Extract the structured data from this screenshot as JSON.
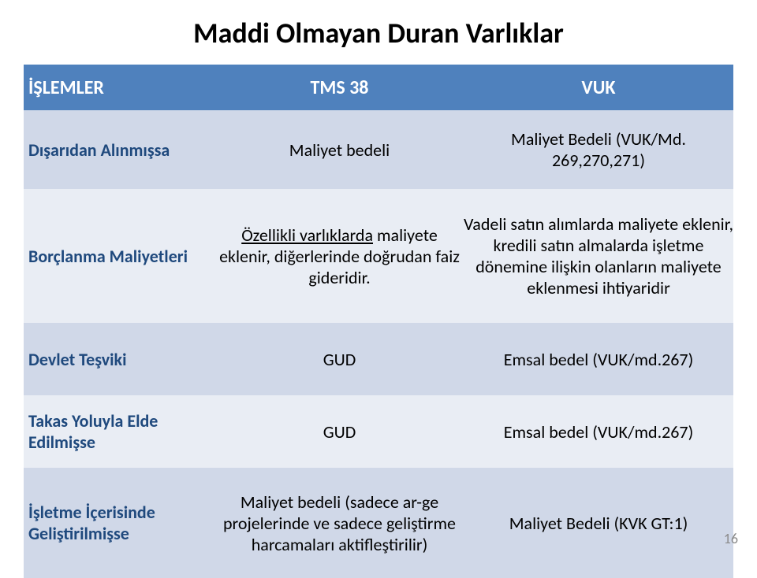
{
  "title": "Maddi Olmayan Duran Varlıklar",
  "headers": {
    "c1": "İŞLEMLER",
    "c2": "TMS 38",
    "c3": "VUK"
  },
  "rows": [
    {
      "label": "Dışarıdan Alınmışsa",
      "tms": "Maliyet bedeli",
      "vuk": "Maliyet Bedeli (VUK/Md. 269,270,271)"
    },
    {
      "label": "Borçlanma Maliyetleri",
      "tms_underlined": "Özellikli varlıklarda",
      "tms_rest": " maliyete eklenir, diğerlerinde doğrudan faiz gideridir.",
      "vuk": "Vadeli satın alımlarda maliyete eklenir, kredili satın almalarda işletme dönemine ilişkin olanların maliyete eklenmesi ihtiyaridir"
    },
    {
      "label": "Devlet Teşviki",
      "tms": "GUD",
      "vuk": "Emsal bedel (VUK/md.267)"
    },
    {
      "label": "Takas Yoluyla Elde Edilmişse",
      "tms": "GUD",
      "vuk": "Emsal bedel (VUK/md.267)"
    },
    {
      "label": "İşletme İçerisinde Geliştirilmişse",
      "tms": "Maliyet bedeli (sadece ar-ge projelerinde ve sadece geliştirme harcamaları aktifleştirilir)",
      "vuk": "Maliyet Bedeli (KVK GT:1)"
    }
  ],
  "colors": {
    "header_bg": "#4f81bd",
    "header_text": "#ffffff",
    "band_a": "#d0d8e8",
    "band_b": "#e9edf4",
    "col1_text": "#1f497d",
    "cell_text": "#000000"
  },
  "slide_number": "16"
}
